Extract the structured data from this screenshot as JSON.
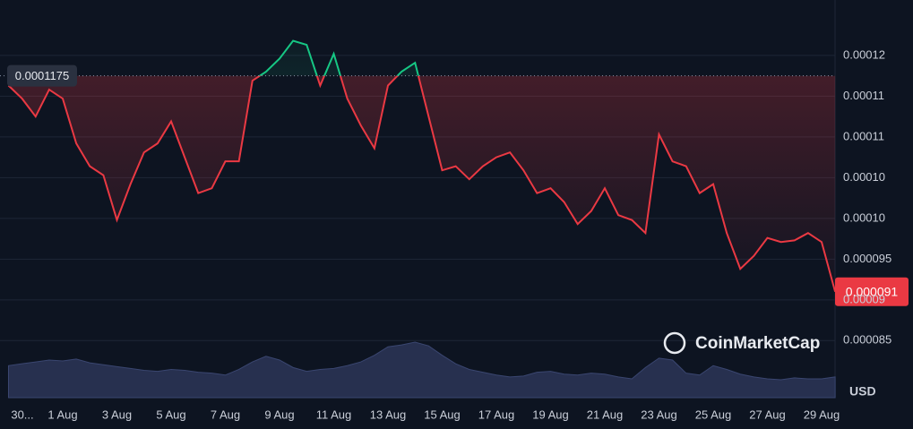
{
  "chart_data": {
    "type": "baseline",
    "categories": [
      "30...",
      null,
      null,
      null,
      "1 Aug",
      null,
      null,
      null,
      "3 Aug",
      null,
      null,
      null,
      "5 Aug",
      null,
      null,
      null,
      "7 Aug",
      null,
      null,
      null,
      "9 Aug",
      null,
      null,
      null,
      "11 Aug",
      null,
      null,
      null,
      "13 Aug",
      null,
      null,
      null,
      "15 Aug",
      null,
      null,
      null,
      "17 Aug",
      null,
      null,
      null,
      "19 Aug",
      null,
      null,
      null,
      "21 Aug",
      null,
      null,
      null,
      "23 Aug",
      null,
      null,
      null,
      "25 Aug",
      null,
      null,
      null,
      "27 Aug",
      null,
      null,
      null,
      "29 Aug",
      null
    ],
    "series": [
      {
        "color_above": "#16c784",
        "color_below": "#ea3943",
        "values": [
          0.0001163,
          0.0001147,
          0.0001125,
          0.0001158,
          0.0001147,
          0.0001092,
          0.0001064,
          0.0001053,
          9.98e-05,
          0.0001042,
          0.0001081,
          0.0001092,
          0.0001119,
          0.0001075,
          0.0001031,
          0.0001037,
          0.000107,
          0.000107,
          0.0001169,
          0.000118,
          0.0001196,
          0.0001218,
          0.0001213,
          0.0001163,
          0.0001202,
          0.0001147,
          0.0001114,
          0.0001086,
          0.0001163,
          0.000118,
          0.0001191,
          0.0001125,
          0.0001059,
          0.0001064,
          0.0001048,
          0.0001064,
          0.0001075,
          0.0001081,
          0.0001059,
          0.0001031,
          0.0001037,
          0.000102,
          9.93e-05,
          0.0001009,
          0.0001037,
          0.0001004,
          9.98e-05,
          9.82e-05,
          0.0001103,
          0.000107,
          0.0001064,
          0.0001031,
          0.0001042,
          9.82e-05,
          9.38e-05,
          9.54e-05,
          9.76e-05,
          9.71e-05,
          9.73e-05,
          9.82e-05,
          9.71e-05,
          9.1e-05
        ]
      }
    ],
    "volume": {
      "color": "#27304f",
      "values": [
        34,
        36,
        38,
        40,
        39,
        41,
        37,
        35,
        33,
        31,
        29,
        28,
        30,
        29,
        27,
        26,
        24,
        30,
        38,
        44,
        40,
        32,
        28,
        30,
        31,
        34,
        38,
        45,
        54,
        56,
        59,
        55,
        45,
        36,
        30,
        27,
        24,
        22,
        23,
        27,
        28,
        25,
        24,
        26,
        25,
        22,
        20,
        32,
        42,
        40,
        26,
        24,
        34,
        30,
        25,
        22,
        20,
        19,
        21,
        20,
        20,
        22
      ]
    },
    "baseline": 0.0001175,
    "ylim": [
      7.8e-05,
      0.0001268
    ],
    "yticks": [
      8.5e-05,
      9e-05,
      9.5e-05,
      {
        "value": 0.0001,
        "label": "0.00010"
      },
      {
        "value": 0.000105,
        "label": "0.00010"
      },
      {
        "value": 0.00011,
        "label": "0.00011"
      },
      {
        "value": 0.000115,
        "label": "0.00011"
      },
      {
        "value": 0.00012,
        "label": "0.00012"
      }
    ],
    "grid": true,
    "currency": "USD",
    "watermark": "CoinMarketCap"
  }
}
